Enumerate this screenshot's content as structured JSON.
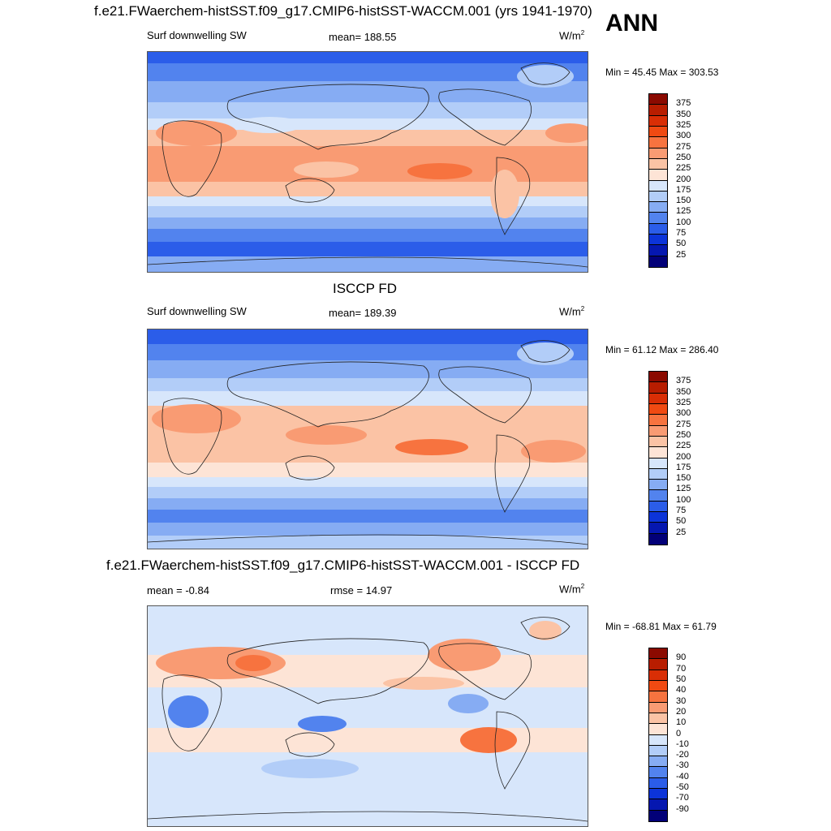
{
  "header": {
    "title": "f.e21.FWaerchem-histSST.f09_g17.CMIP6-histSST-WACCM.001 (yrs 1941-1970)",
    "season": "ANN"
  },
  "panels": [
    {
      "variable": "Surf downwelling SW",
      "stat": "mean= 188.55",
      "units_base": "W/m",
      "units_exp": "2",
      "minmax": "Min =  45.45 Max = 303.53"
    },
    {
      "title": "ISCCP FD",
      "variable": "Surf downwelling SW",
      "stat": "mean= 189.39",
      "units_base": "W/m",
      "units_exp": "2",
      "minmax": "Min =  61.12 Max = 286.40"
    },
    {
      "title": "f.e21.FWaerchem-histSST.f09_g17.CMIP6-histSST-WACCM.001 - ISCCP FD",
      "stat_left": "mean =  -0.84",
      "stat": "rmse =  14.97",
      "units_base": "W/m",
      "units_exp": "2",
      "minmax": "Min = -68.81 Max =  61.79"
    }
  ],
  "colorbars": {
    "absolute": {
      "labels": [
        "375",
        "350",
        "325",
        "300",
        "275",
        "250",
        "225",
        "200",
        "175",
        "150",
        "125",
        "100",
        "75",
        "50",
        "25"
      ],
      "colors": [
        "#8b0a00",
        "#b81d00",
        "#d92e05",
        "#f04a12",
        "#f7733f",
        "#f99b73",
        "#fbc3a5",
        "#fde4d6",
        "#d7e6fb",
        "#b2cdf8",
        "#86acf3",
        "#5283ee",
        "#2b5de9",
        "#0c34d9",
        "#0517b0",
        "#020078"
      ]
    },
    "difference": {
      "labels": [
        "90",
        "70",
        "50",
        "40",
        "30",
        "20",
        "10",
        "0",
        "-10",
        "-20",
        "-30",
        "-40",
        "-50",
        "-70",
        "-90"
      ],
      "colors": [
        "#8b0a00",
        "#b81d00",
        "#d92e05",
        "#f04a12",
        "#f7733f",
        "#f99b73",
        "#fbc3a5",
        "#fde4d6",
        "#d7e6fb",
        "#b2cdf8",
        "#86acf3",
        "#5283ee",
        "#2b5de9",
        "#0c34d9",
        "#0517b0",
        "#020078"
      ]
    }
  }
}
